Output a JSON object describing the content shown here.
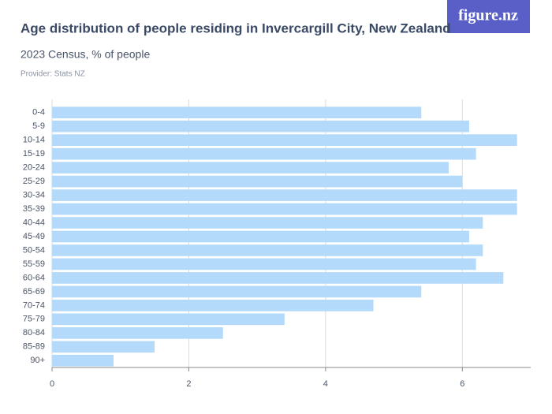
{
  "logo": "figure.nz",
  "chart_data": {
    "type": "barh",
    "title": "Age distribution of people residing in Invercargill City, New Zealand",
    "subtitle": "2023 Census, % of people",
    "provider": "Provider: Stats NZ",
    "categories": [
      "0-4",
      "5-9",
      "10-14",
      "15-19",
      "20-24",
      "25-29",
      "30-34",
      "35-39",
      "40-44",
      "45-49",
      "50-54",
      "55-59",
      "60-64",
      "65-69",
      "70-74",
      "75-79",
      "80-84",
      "85-89",
      "90+"
    ],
    "values": [
      5.4,
      6.1,
      6.8,
      6.2,
      5.8,
      6.0,
      6.8,
      6.8,
      6.3,
      6.1,
      6.3,
      6.2,
      6.6,
      5.4,
      4.7,
      3.4,
      2.5,
      1.5,
      0.9
    ],
    "color": "#b3dafb",
    "xlim": [
      0,
      7
    ],
    "xticks": [
      0,
      2,
      4,
      6
    ],
    "grid": true
  }
}
